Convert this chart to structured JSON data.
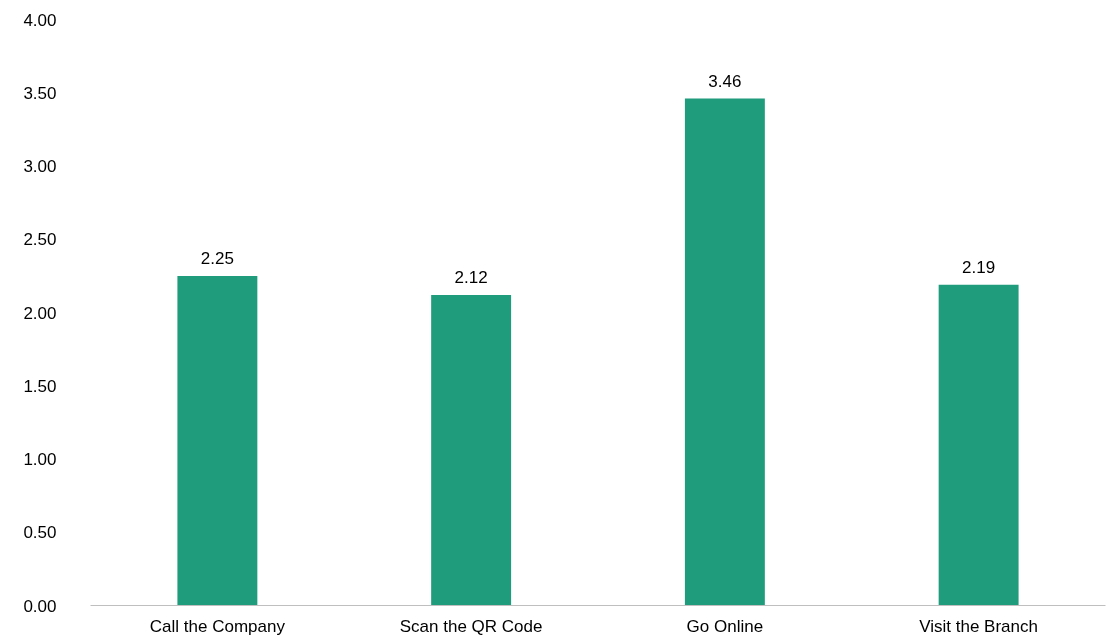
{
  "chart_data": {
    "type": "bar",
    "categories": [
      "Call the Company",
      "Scan the QR Code",
      "Go Online",
      "Visit the Branch"
    ],
    "values": [
      2.25,
      2.12,
      3.46,
      2.19
    ],
    "color": "#1f9c7c",
    "ylim": [
      0,
      4
    ],
    "yticks": [
      {
        "value": 0,
        "label": "0.00"
      },
      {
        "value": 0.5,
        "label": "0.50"
      },
      {
        "value": 1,
        "label": "1.00"
      },
      {
        "value": 1.5,
        "label": "1.50"
      },
      {
        "value": 2,
        "label": "2.00"
      },
      {
        "value": 2.5,
        "label": "2.50"
      },
      {
        "value": 3,
        "label": "3.00"
      },
      {
        "value": 3.5,
        "label": "3.50"
      },
      {
        "value": 4,
        "label": "4.00"
      }
    ],
    "data_labels": true,
    "grid": false
  }
}
